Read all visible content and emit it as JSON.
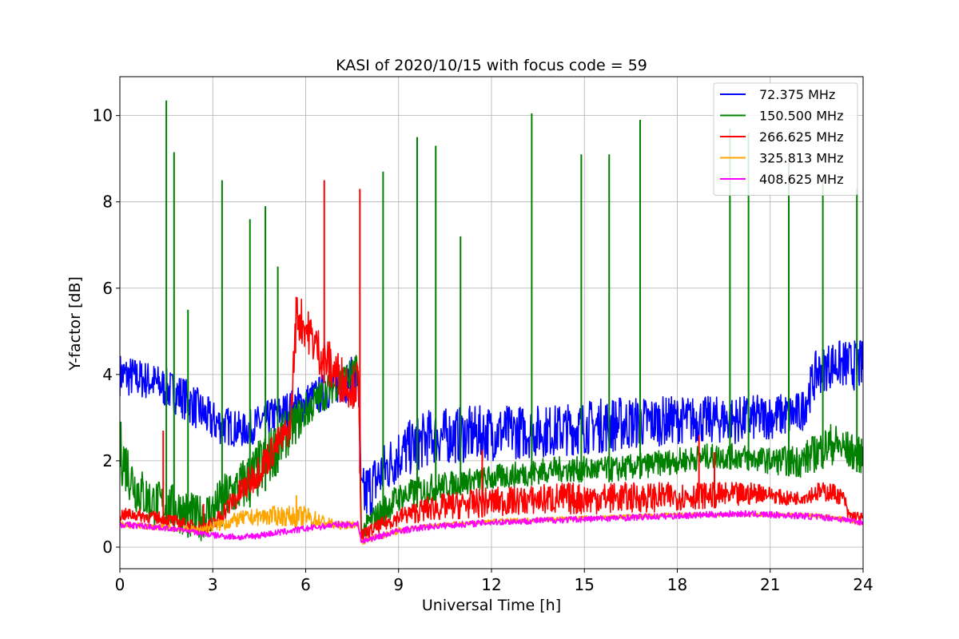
{
  "chart_data": {
    "type": "line",
    "title": "KASI of 2020/10/15 with focus code = 59",
    "xlabel": "Universal Time [h]",
    "ylabel": "Y-factor [dB]",
    "xlim": [
      0,
      24
    ],
    "ylim": [
      -0.5,
      10.9
    ],
    "xticks": [
      0,
      3,
      6,
      9,
      12,
      15,
      18,
      21,
      24
    ],
    "yticks": [
      0,
      2,
      4,
      6,
      8,
      10
    ],
    "grid": true,
    "legend_position": "top-right",
    "series": [
      {
        "name": " 72.375 MHz",
        "color": "#0000ff",
        "x": [
          0,
          1,
          2,
          3,
          4,
          5,
          6,
          7,
          7.7,
          7.8,
          8,
          8.5,
          9,
          10,
          12,
          14,
          16,
          18,
          20,
          22,
          22.5,
          23,
          24
        ],
        "low": [
          3.5,
          3.4,
          3.0,
          2.4,
          2.3,
          2.6,
          2.9,
          3.3,
          3.4,
          0.3,
          0.6,
          1.1,
          1.5,
          1.9,
          2.0,
          2.1,
          2.2,
          2.4,
          2.4,
          2.6,
          3.5,
          3.7,
          3.6
        ],
        "high": [
          4.5,
          4.3,
          4.0,
          3.4,
          3.1,
          3.5,
          3.8,
          4.2,
          4.5,
          1.8,
          2.0,
          2.4,
          2.8,
          3.2,
          3.3,
          3.3,
          3.5,
          3.5,
          3.5,
          3.6,
          4.6,
          4.8,
          4.8
        ]
      },
      {
        "name": "150.500 MHz",
        "color": "#008000",
        "x": [
          0,
          0.5,
          1,
          1.5,
          2,
          2.5,
          3,
          3.5,
          4,
          4.5,
          5,
          5.5,
          6,
          6.5,
          7,
          7.5,
          7.7,
          7.8,
          8,
          8.5,
          9,
          10,
          11,
          12,
          13,
          14,
          15,
          16,
          17,
          18,
          19,
          20,
          21,
          22,
          23,
          24
        ],
        "low": [
          1.5,
          0.8,
          0.5,
          0.4,
          0.3,
          0.1,
          0.3,
          0.6,
          0.8,
          1.1,
          1.6,
          2.2,
          2.7,
          3.1,
          3.4,
          3.6,
          3.7,
          0.1,
          0.3,
          0.5,
          0.8,
          1.0,
          1.2,
          1.3,
          1.4,
          1.5,
          1.5,
          1.5,
          1.6,
          1.7,
          1.8,
          1.8,
          1.7,
          1.6,
          1.9,
          1.7
        ],
        "high": [
          3.0,
          2.0,
          1.6,
          1.5,
          1.4,
          1.2,
          1.4,
          1.8,
          2.1,
          2.5,
          2.9,
          3.3,
          3.6,
          3.9,
          4.2,
          4.4,
          4.5,
          0.5,
          0.8,
          1.2,
          1.5,
          1.7,
          1.8,
          1.9,
          2.0,
          2.1,
          2.1,
          2.1,
          2.2,
          2.3,
          2.4,
          2.4,
          2.3,
          2.4,
          2.9,
          2.5
        ],
        "spikes": [
          [
            1.5,
            10.35
          ],
          [
            1.75,
            9.15
          ],
          [
            2.2,
            5.5
          ],
          [
            3.3,
            8.5
          ],
          [
            4.2,
            7.6
          ],
          [
            4.7,
            7.9
          ],
          [
            5.1,
            6.5
          ],
          [
            8.5,
            8.7
          ],
          [
            9.6,
            9.5
          ],
          [
            10.2,
            9.3
          ],
          [
            11,
            7.2
          ],
          [
            13.3,
            10.05
          ],
          [
            14.9,
            9.1
          ],
          [
            15.8,
            9.1
          ],
          [
            16.8,
            9.9
          ],
          [
            19.7,
            9.7
          ],
          [
            20.3,
            9.6
          ],
          [
            21.6,
            8.9
          ],
          [
            22.7,
            8.6
          ],
          [
            23.8,
            8.3
          ]
        ]
      },
      {
        "name": "266.625 MHz",
        "color": "#ff0000",
        "x": [
          0,
          0.5,
          1,
          1.5,
          2,
          2.5,
          3,
          3.5,
          4,
          4.5,
          5,
          5.5,
          5.7,
          6,
          6.5,
          7,
          7.5,
          7.7,
          7.8,
          8,
          8.5,
          9,
          10,
          11,
          12,
          13,
          14,
          15,
          16,
          17,
          18,
          19,
          20,
          20.7,
          21,
          21.5,
          22,
          22.5,
          23,
          23.4,
          23.5,
          24
        ],
        "low": [
          0.6,
          0.6,
          0.55,
          0.5,
          0.4,
          0.3,
          0.3,
          0.7,
          1.0,
          1.4,
          1.9,
          2.4,
          4.8,
          4.6,
          3.9,
          3.4,
          3.2,
          3.3,
          0.1,
          0.2,
          0.35,
          0.5,
          0.6,
          0.65,
          0.7,
          0.75,
          0.75,
          0.75,
          0.8,
          0.8,
          0.85,
          0.9,
          0.9,
          1.05,
          1.05,
          0.95,
          1.0,
          1.05,
          1.05,
          0.95,
          0.6,
          0.5
        ],
        "high": [
          0.9,
          0.9,
          0.85,
          0.8,
          0.7,
          0.6,
          0.7,
          1.2,
          1.7,
          2.2,
          2.7,
          3.1,
          6.0,
          5.6,
          5.0,
          4.6,
          4.2,
          4.4,
          0.4,
          0.5,
          0.7,
          0.9,
          1.2,
          1.3,
          1.4,
          1.4,
          1.5,
          1.5,
          1.5,
          1.5,
          1.5,
          1.5,
          1.5,
          1.5,
          1.4,
          1.3,
          1.3,
          1.5,
          1.5,
          1.3,
          0.9,
          0.8
        ],
        "spikes": [
          [
            1.4,
            2.7
          ],
          [
            2.7,
            1.0
          ],
          [
            6.6,
            8.5
          ],
          [
            7.75,
            8.3
          ],
          [
            11.7,
            2.25
          ],
          [
            18.7,
            2.6
          ],
          [
            19.2,
            2.2
          ]
        ]
      },
      {
        "name": "325.813 MHz",
        "color": "#ffa500",
        "x": [
          0,
          1,
          2,
          2.5,
          3,
          3.5,
          4,
          5,
          6,
          7,
          7.7,
          7.8,
          8,
          9,
          10,
          12,
          14,
          16,
          18,
          20,
          22,
          23,
          24
        ],
        "low": [
          0.45,
          0.4,
          0.35,
          0.3,
          0.35,
          0.4,
          0.5,
          0.5,
          0.45,
          0.4,
          0.45,
          0.05,
          0.1,
          0.3,
          0.45,
          0.55,
          0.6,
          0.65,
          0.7,
          0.7,
          0.7,
          0.65,
          0.5
        ],
        "high": [
          0.6,
          0.55,
          0.5,
          0.5,
          0.6,
          0.75,
          0.85,
          0.95,
          0.95,
          0.6,
          0.6,
          0.2,
          0.25,
          0.45,
          0.55,
          0.65,
          0.7,
          0.75,
          0.8,
          0.8,
          0.8,
          0.75,
          0.6
        ],
        "spikes": [
          [
            5.7,
            1.2
          ]
        ]
      },
      {
        "name": "408.625 MHz",
        "color": "#ff00ff",
        "x": [
          0,
          1,
          2,
          3,
          4,
          5,
          6,
          7,
          7.7,
          7.8,
          8,
          9,
          10,
          12,
          14,
          16,
          18,
          20,
          22,
          23,
          24
        ],
        "low": [
          0.45,
          0.4,
          0.35,
          0.2,
          0.15,
          0.25,
          0.35,
          0.45,
          0.45,
          0.05,
          0.1,
          0.3,
          0.4,
          0.5,
          0.55,
          0.6,
          0.65,
          0.7,
          0.65,
          0.6,
          0.5
        ],
        "high": [
          0.6,
          0.55,
          0.45,
          0.35,
          0.3,
          0.4,
          0.5,
          0.6,
          0.6,
          0.2,
          0.25,
          0.45,
          0.55,
          0.65,
          0.7,
          0.75,
          0.8,
          0.85,
          0.8,
          0.75,
          0.65
        ]
      }
    ]
  }
}
